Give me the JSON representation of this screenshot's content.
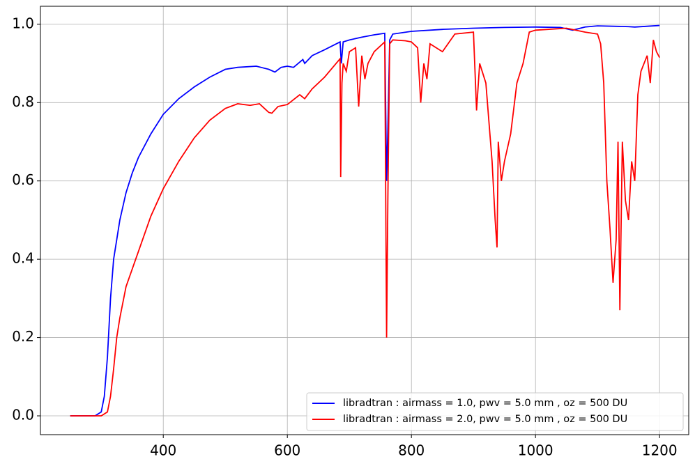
{
  "chart_data": {
    "type": "line",
    "xlim": [
      202,
      1247
    ],
    "ylim": [
      -0.048,
      1.046
    ],
    "xticks": [
      400,
      600,
      800,
      1000,
      1200
    ],
    "yticks": [
      {
        "value": 0,
        "label": "0.0"
      },
      0.2,
      0.4,
      0.6,
      0.8,
      {
        "value": 1,
        "label": "1.0"
      }
    ],
    "grid": true,
    "legend": "lower right",
    "series": [
      {
        "name": "libradtran : airmass = 1.0, pwv  = 5.0 mm , oz = 500 DU",
        "color": "#0000ff",
        "x": [
          250,
          290,
          300,
          305,
          310,
          315,
          320,
          325,
          330,
          340,
          350,
          360,
          380,
          400,
          425,
          450,
          475,
          500,
          520,
          550,
          570,
          580,
          590,
          600,
          610,
          625,
          628,
          640,
          660,
          685,
          687,
          690,
          700,
          720,
          740,
          757,
          760,
          762,
          765,
          770,
          800,
          850,
          900,
          950,
          1000,
          1040,
          1060,
          1080,
          1100,
          1150,
          1160,
          1200
        ],
        "values": [
          0,
          0,
          0.01,
          0.05,
          0.15,
          0.3,
          0.4,
          0.45,
          0.5,
          0.57,
          0.62,
          0.66,
          0.72,
          0.77,
          0.81,
          0.84,
          0.865,
          0.885,
          0.89,
          0.893,
          0.885,
          0.878,
          0.89,
          0.893,
          0.89,
          0.91,
          0.9,
          0.92,
          0.935,
          0.955,
          0.9,
          0.955,
          0.96,
          0.967,
          0.973,
          0.977,
          0.6,
          0.73,
          0.96,
          0.975,
          0.982,
          0.987,
          0.99,
          0.992,
          0.993,
          0.992,
          0.985,
          0.993,
          0.996,
          0.994,
          0.993,
          0.997
        ]
      },
      {
        "name": "libradtran : airmass = 2.0,  pwv  = 5.0 mm , oz = 500 DU",
        "color": "#ff0000",
        "x": [
          250,
          300,
          310,
          315,
          320,
          325,
          330,
          340,
          360,
          380,
          400,
          425,
          450,
          475,
          500,
          520,
          540,
          555,
          570,
          575,
          585,
          600,
          620,
          628,
          640,
          660,
          685,
          686,
          688,
          690,
          695,
          700,
          710,
          715,
          720,
          725,
          730,
          740,
          757,
          760,
          762,
          765,
          770,
          790,
          800,
          810,
          815,
          820,
          825,
          830,
          850,
          870,
          900,
          905,
          910,
          920,
          930,
          935,
          938,
          940,
          945,
          950,
          960,
          970,
          980,
          990,
          1000,
          1050,
          1080,
          1100,
          1105,
          1110,
          1115,
          1120,
          1125,
          1130,
          1133,
          1136,
          1140,
          1145,
          1150,
          1155,
          1160,
          1165,
          1170,
          1180,
          1185,
          1190,
          1195,
          1200
        ],
        "values": [
          0,
          0,
          0.01,
          0.05,
          0.12,
          0.2,
          0.25,
          0.33,
          0.42,
          0.51,
          0.58,
          0.65,
          0.71,
          0.755,
          0.785,
          0.797,
          0.793,
          0.797,
          0.775,
          0.773,
          0.79,
          0.795,
          0.82,
          0.81,
          0.835,
          0.865,
          0.912,
          0.61,
          0.85,
          0.9,
          0.88,
          0.93,
          0.94,
          0.79,
          0.92,
          0.86,
          0.9,
          0.93,
          0.955,
          0.2,
          0.55,
          0.95,
          0.96,
          0.958,
          0.955,
          0.94,
          0.8,
          0.9,
          0.86,
          0.95,
          0.93,
          0.975,
          0.98,
          0.78,
          0.9,
          0.85,
          0.65,
          0.5,
          0.43,
          0.7,
          0.6,
          0.65,
          0.72,
          0.85,
          0.9,
          0.98,
          0.985,
          0.99,
          0.98,
          0.975,
          0.95,
          0.85,
          0.6,
          0.48,
          0.34,
          0.45,
          0.7,
          0.27,
          0.7,
          0.55,
          0.5,
          0.65,
          0.6,
          0.82,
          0.88,
          0.92,
          0.85,
          0.96,
          0.93,
          0.915
        ]
      }
    ]
  }
}
